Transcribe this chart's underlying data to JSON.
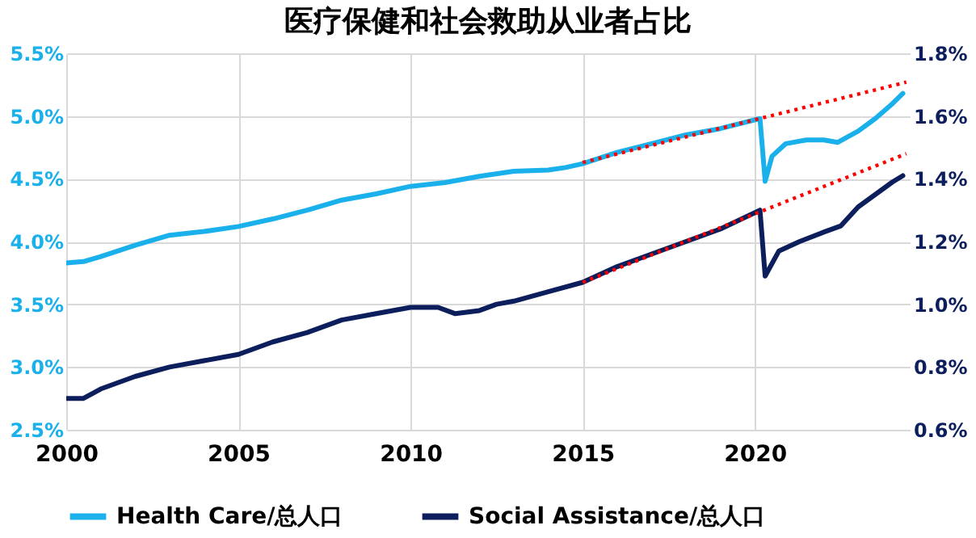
{
  "chart_data": {
    "type": "line",
    "title": "医疗保健和社会救助从业者占比",
    "xlim": [
      2000,
      2024.5
    ],
    "xticks": [
      2000,
      2005,
      2010,
      2015,
      2020
    ],
    "ylim": [
      2.5,
      5.5
    ],
    "yticks": [
      {
        "value": 2.5,
        "label": "2.5%"
      },
      {
        "value": 3.0,
        "label": "3.0%"
      },
      {
        "value": 3.5,
        "label": "3.5%"
      },
      {
        "value": 4.0,
        "label": "4.0%"
      },
      {
        "value": 4.5,
        "label": "4.5%"
      },
      {
        "value": 5.0,
        "label": "5.0%"
      },
      {
        "value": 5.5,
        "label": "5.5%"
      }
    ],
    "y2lim": [
      0.6,
      1.8
    ],
    "y2ticks": [
      {
        "value": 0.6,
        "label": "0.6%"
      },
      {
        "value": 0.8,
        "label": "0.8%"
      },
      {
        "value": 1.0,
        "label": "1.0%"
      },
      {
        "value": 1.2,
        "label": "1.2%"
      },
      {
        "value": 1.4,
        "label": "1.4%"
      },
      {
        "value": 1.6,
        "label": "1.6%"
      },
      {
        "value": 1.8,
        "label": "1.8%"
      }
    ],
    "grid": true,
    "legend": "bottom",
    "series": [
      {
        "name": "Health Care/总人口",
        "color": "#1ab0ec",
        "line_style": "solid",
        "x": [
          2000,
          2000.5,
          2001,
          2002,
          2003,
          2004,
          2005,
          2006,
          2007,
          2008,
          2009,
          2010,
          2011,
          2012,
          2013,
          2014,
          2014.5,
          2015,
          2016,
          2017,
          2018,
          2019,
          2020.15,
          2020.3,
          2020.5,
          2020.9,
          2021.5,
          2022,
          2022.4,
          2023,
          2023.5,
          2024,
          2024.3
        ],
        "values": [
          3.83,
          3.84,
          3.88,
          3.97,
          4.05,
          4.08,
          4.12,
          4.18,
          4.25,
          4.33,
          4.38,
          4.44,
          4.47,
          4.52,
          4.56,
          4.57,
          4.59,
          4.62,
          4.71,
          4.78,
          4.85,
          4.9,
          4.98,
          4.48,
          4.68,
          4.78,
          4.81,
          4.81,
          4.79,
          4.88,
          4.98,
          5.1,
          5.18
        ]
      },
      {
        "name": "Social Assistance/总人口",
        "color": "#0c1f5c",
        "line_style": "solid",
        "axis": "y2",
        "x": [
          2000,
          2000.5,
          2001,
          2002,
          2003,
          2004,
          2005,
          2006,
          2007,
          2008,
          2009,
          2010,
          2010.8,
          2011.3,
          2012,
          2012.5,
          2013,
          2014,
          2015,
          2016,
          2017,
          2018,
          2019,
          2020.15,
          2020.3,
          2020.7,
          2021.3,
          2022,
          2022.5,
          2023,
          2023.5,
          2024,
          2024.3
        ],
        "values": [
          0.7,
          0.7,
          0.73,
          0.77,
          0.8,
          0.82,
          0.84,
          0.88,
          0.91,
          0.95,
          0.97,
          0.99,
          0.99,
          0.97,
          0.98,
          1.0,
          1.01,
          1.04,
          1.07,
          1.12,
          1.16,
          1.2,
          1.24,
          1.3,
          1.09,
          1.17,
          1.2,
          1.23,
          1.25,
          1.31,
          1.35,
          1.39,
          1.41
        ]
      },
      {
        "color": "#ff0000",
        "line_style": "dotted",
        "x": [
          2015,
          2024.4
        ],
        "values": [
          4.63,
          5.27
        ]
      },
      {
        "color": "#ff0000",
        "line_style": "dotted",
        "axis": "y2",
        "x": [
          2015,
          2024.4
        ],
        "values": [
          1.07,
          1.48
        ]
      }
    ]
  }
}
